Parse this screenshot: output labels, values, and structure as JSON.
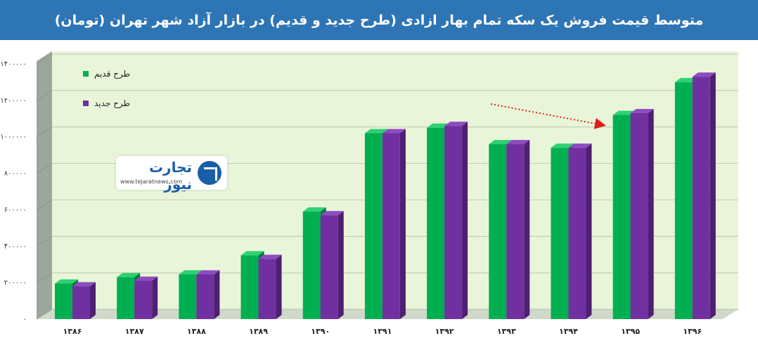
{
  "title": "متوسط قیمت فروش یک سکه تمام بهار ازادی (طرح جدید و قدیم) در بازار آزاد شهر تهران (تومان)",
  "logo": {
    "name": "تجارت نیوز",
    "url": "www.tejaratnews.com"
  },
  "colors": {
    "old": "#00b050",
    "new": "#7030a0",
    "plot_bg": "#e9f5d9",
    "wall_side": "#9aa79a",
    "arrow": "#e31c1c"
  },
  "chart_data": {
    "type": "bar",
    "title": "متوسط قیمت فروش یک سکه تمام بهار ازادی (طرح جدید و قدیم) در بازار آزاد شهر تهران (تومان)",
    "xlabel": "",
    "ylabel": "",
    "categories": [
      "۱۳۸۶",
      "۱۳۸۷",
      "۱۳۸۸",
      "۱۳۸۹",
      "۱۳۹۰",
      "۱۳۹۱",
      "۱۳۹۲",
      "۱۳۹۳",
      "۱۳۹۴",
      "۱۳۹۵",
      "۱۳۹۶"
    ],
    "series": [
      {
        "name": "طرح قدیم",
        "values": [
          195000,
          230000,
          245000,
          350000,
          590000,
          1020000,
          1050000,
          960000,
          940000,
          1120000,
          1300000
        ]
      },
      {
        "name": "طرح جدید",
        "values": [
          180000,
          210000,
          245000,
          330000,
          570000,
          1020000,
          1060000,
          960000,
          940000,
          1130000,
          1330000
        ]
      }
    ],
    "ylim": [
      0,
      1400000
    ],
    "yticks": [
      0,
      200000,
      400000,
      600000,
      800000,
      1000000,
      1200000,
      1400000
    ],
    "ytick_labels": [
      "۰",
      "۲۰۰۰۰۰",
      "۴۰۰۰۰۰",
      "۶۰۰۰۰۰",
      "۸۰۰۰۰۰",
      "۱۰۰۰۰۰۰",
      "۱۲۰۰۰۰۰",
      "۱۴۰۰۰۰۰"
    ],
    "legend_position": "top-left",
    "grid": true,
    "style": "3d-clustered-column",
    "annotation": "red dotted arrow from 1392 toward 1395"
  }
}
